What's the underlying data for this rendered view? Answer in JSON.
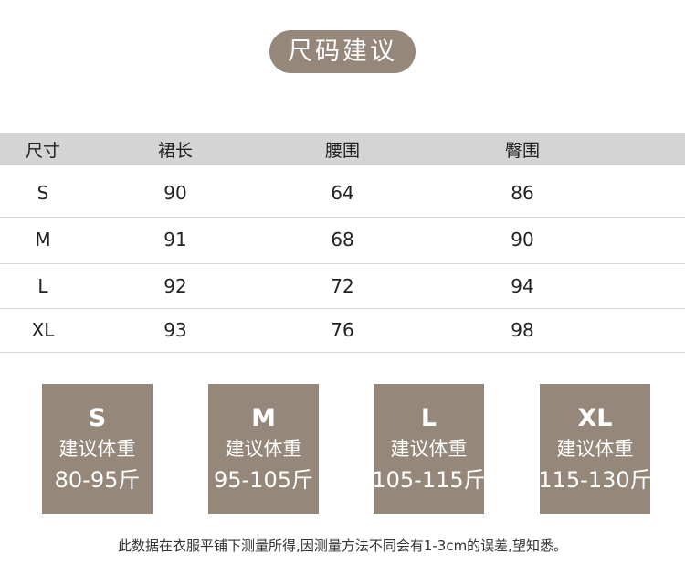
{
  "title": "尺码建议",
  "table": {
    "headers": [
      "尺寸",
      "裙长",
      "腰围",
      "臀围"
    ],
    "rows": [
      [
        "S",
        "90",
        "64",
        "86"
      ],
      [
        "M",
        "91",
        "68",
        "90"
      ],
      [
        "L",
        "92",
        "72",
        "94"
      ],
      [
        "XL",
        "93",
        "76",
        "98"
      ]
    ]
  },
  "weights": [
    {
      "size": "S",
      "label": "建议体重",
      "range": "80-95斤"
    },
    {
      "size": "M",
      "label": "建议体重",
      "range": "95-105斤"
    },
    {
      "size": "L",
      "label": "建议体重",
      "range": "105-115斤"
    },
    {
      "size": "XL",
      "label": "建议体重",
      "range": "115-130斤"
    }
  ],
  "note": "此数据在衣服平铺下测量所得,因测量方法不同会有1-3cm的误差,望知悉。",
  "colors": {
    "accent": "#958779",
    "header_bg": "#d4d4d4"
  }
}
